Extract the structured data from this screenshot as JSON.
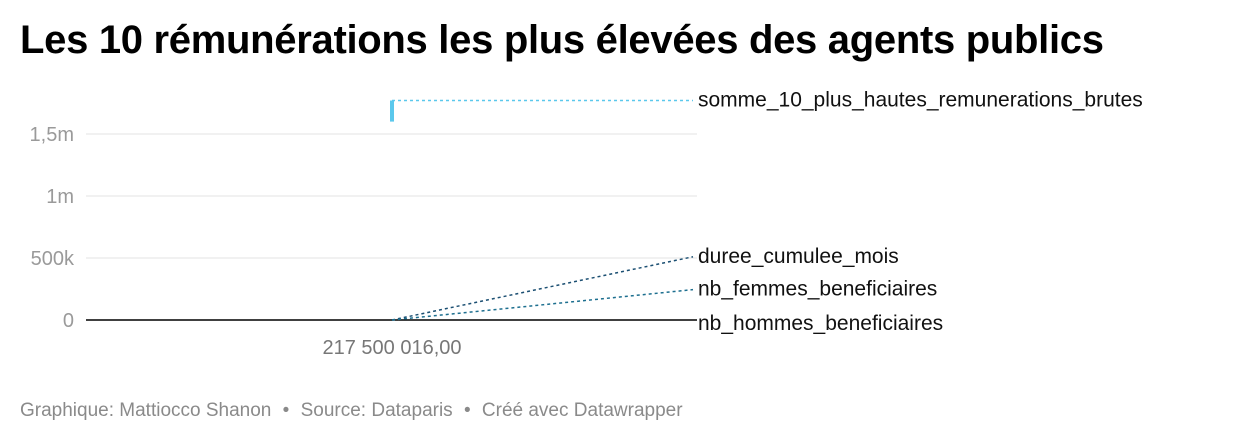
{
  "title": "Les 10 rémunérations les plus élevées des agents publics",
  "footer": {
    "author": "Graphique: Mattiocco Shanon",
    "source": "Source: Dataparis",
    "tool": "Créé avec Datawrapper",
    "separator": "•"
  },
  "chart_data": {
    "type": "line",
    "title": "Les 10 rémunérations les plus élevées des agents publics",
    "x": [
      217500016.0
    ],
    "x_tick_labels": [
      "217 500 016,00"
    ],
    "ylim": [
      0,
      1800000
    ],
    "y_ticks": [
      {
        "value": 0,
        "label": "0"
      },
      {
        "value": 500000,
        "label": "500k"
      },
      {
        "value": 1000000,
        "label": "1m"
      },
      {
        "value": 1500000,
        "label": "1,5m"
      }
    ],
    "grid": true,
    "legend": "direct labels at right",
    "series": [
      {
        "name": "somme_10_plus_hautes_remunerations_brutes",
        "values": [
          1770000
        ],
        "range": [
          1600000,
          1770000
        ],
        "color": "#5bc8ec"
      },
      {
        "name": "duree_cumulee_mois",
        "values": [
          510000
        ],
        "color": "#1b4f72"
      },
      {
        "name": "nb_femmes_beneficiaires",
        "values": [
          245000
        ],
        "color": "#1d6f8f"
      },
      {
        "name": "nb_hommes_beneficiaires",
        "values": [
          0
        ],
        "color": "#000000"
      }
    ]
  }
}
